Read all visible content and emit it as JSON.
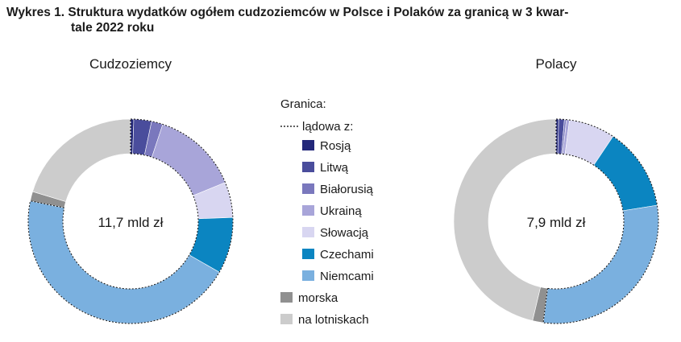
{
  "title": {
    "line1": "Wykres 1. Struktura wydatków ogółem cudzoziemców w Polsce i Polaków za granicą w 3 kwar-",
    "line2": "tale 2022 roku"
  },
  "chart_data": [
    {
      "type": "pie",
      "subtype": "donut",
      "title": "Cudzoziemcy",
      "center_label": "11,7 mld zł",
      "start": "top",
      "direction": "clockwise",
      "slices": [
        {
          "name": "Rosją",
          "value": 0.5,
          "color": "#23287a"
        },
        {
          "name": "Litwą",
          "value": 2.8,
          "color": "#4a4d9c"
        },
        {
          "name": "Białorusią",
          "value": 1.8,
          "color": "#7a78bd"
        },
        {
          "name": "Ukrainą",
          "value": 13.7,
          "color": "#a8a5d9"
        },
        {
          "name": "Słowacją",
          "value": 5.6,
          "color": "#d8d6f1"
        },
        {
          "name": "Czechami",
          "value": 8.9,
          "color": "#0b85c1"
        },
        {
          "name": "Niemcami",
          "value": 44.9,
          "color": "#7ab0df"
        },
        {
          "name": "morska",
          "value": 1.5,
          "color": "#909090"
        },
        {
          "name": "na lotniskach",
          "value": 20.3,
          "color": "#cccccc"
        }
      ],
      "land_border_group": [
        "Rosją",
        "Litwą",
        "Białorusią",
        "Ukrainą",
        "Słowacją",
        "Czechami",
        "Niemcami"
      ]
    },
    {
      "type": "pie",
      "subtype": "donut",
      "title": "Polacy",
      "center_label": "7,9 mld zł",
      "start": "top",
      "direction": "clockwise",
      "slices": [
        {
          "name": "Rosją",
          "value": 0.4,
          "color": "#23287a"
        },
        {
          "name": "Litwą",
          "value": 0.9,
          "color": "#4a4d9c"
        },
        {
          "name": "Białorusią",
          "value": 0.3,
          "color": "#7a78bd"
        },
        {
          "name": "Ukrainą",
          "value": 0.5,
          "color": "#a8a5d9"
        },
        {
          "name": "Słowacją",
          "value": 7.3,
          "color": "#d8d6f1"
        },
        {
          "name": "Czechami",
          "value": 13.1,
          "color": "#0b85c1"
        },
        {
          "name": "Niemcami",
          "value": 29.5,
          "color": "#7ab0df"
        },
        {
          "name": "morska",
          "value": 1.7,
          "color": "#909090"
        },
        {
          "name": "na lotniskach",
          "value": 46.3,
          "color": "#cccccc"
        }
      ],
      "land_border_group": [
        "Rosją",
        "Litwą",
        "Białorusią",
        "Ukrainą",
        "Słowacją",
        "Czechami",
        "Niemcami"
      ]
    }
  ],
  "legend": {
    "header": "Granica:",
    "group_label": "lądowa z:",
    "items": [
      {
        "label": "Rosją",
        "color": "#23287a",
        "indent": true
      },
      {
        "label": "Litwą",
        "color": "#4a4d9c",
        "indent": true
      },
      {
        "label": "Białorusią",
        "color": "#7a78bd",
        "indent": true
      },
      {
        "label": "Ukrainą",
        "color": "#a8a5d9",
        "indent": true
      },
      {
        "label": "Słowacją",
        "color": "#d8d6f1",
        "indent": true
      },
      {
        "label": "Czechami",
        "color": "#0b85c1",
        "indent": true
      },
      {
        "label": "Niemcami",
        "color": "#7ab0df",
        "indent": true
      },
      {
        "label": "morska",
        "color": "#909090",
        "indent": false
      },
      {
        "label": "na lotniskach",
        "color": "#cccccc",
        "indent": false
      }
    ]
  }
}
